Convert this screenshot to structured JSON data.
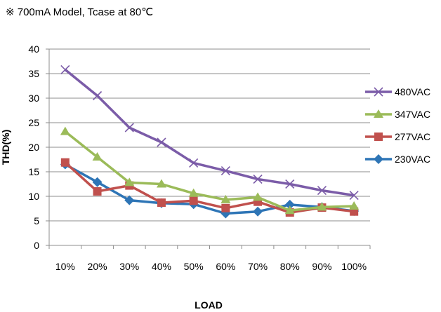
{
  "note": "※ 700mA Model, Tcase at 80℃",
  "chart_data": {
    "type": "line",
    "categories": [
      "10%",
      "20%",
      "30%",
      "40%",
      "50%",
      "60%",
      "70%",
      "80%",
      "90%",
      "100%"
    ],
    "xlabel": "LOAD",
    "ylabel": "THD(%)",
    "ylim": [
      0,
      40
    ],
    "yticks": [
      0,
      5,
      10,
      15,
      20,
      25,
      30,
      35,
      40
    ],
    "grid": "horizontal",
    "legend": "right",
    "series": [
      {
        "name": "480VAC",
        "color": "#7b5ca8",
        "marker": "x",
        "values": [
          35.8,
          30.5,
          24.0,
          21.0,
          16.8,
          15.2,
          13.5,
          12.5,
          11.2,
          10.2
        ]
      },
      {
        "name": "347VAC",
        "color": "#9bbb59",
        "marker": "triangle",
        "values": [
          23.2,
          18.0,
          12.8,
          12.5,
          10.6,
          9.3,
          9.8,
          7.1,
          7.8,
          8.0
        ]
      },
      {
        "name": "277VAC",
        "color": "#c0504d",
        "marker": "square",
        "values": [
          16.9,
          11.0,
          12.2,
          8.7,
          9.1,
          7.6,
          8.9,
          6.7,
          7.7,
          6.9
        ]
      },
      {
        "name": "230VAC",
        "color": "#2e75b6",
        "marker": "diamond",
        "values": [
          16.5,
          12.9,
          9.2,
          8.6,
          8.4,
          6.5,
          6.9,
          8.3,
          7.8,
          7.0
        ]
      }
    ]
  }
}
